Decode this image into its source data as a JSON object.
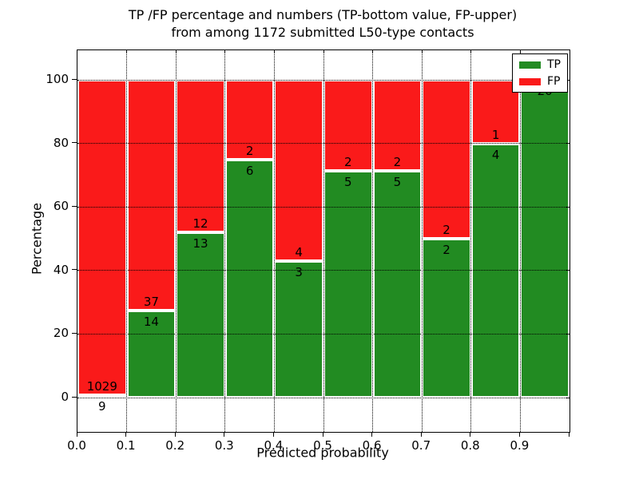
{
  "title": {
    "line1": "TP /FP percentage and numbers (TP-bottom value, FP-upper)",
    "line2": "from among 1172 submitted L50-type contacts"
  },
  "axes": {
    "ylabel": "Percentage",
    "xlabel": "Predicted probability",
    "yticks": [
      "0",
      "20",
      "40",
      "60",
      "80",
      "100"
    ],
    "ytick_values": [
      0,
      20,
      40,
      60,
      80,
      100
    ],
    "xticks": [
      "0.0",
      "0.1",
      "0.2",
      "0.3",
      "0.4",
      "0.5",
      "0.6",
      "0.7",
      "0.8",
      "0.9"
    ],
    "xtick_values": [
      0.0,
      0.1,
      0.2,
      0.3,
      0.4,
      0.5,
      0.6,
      0.7,
      0.8,
      0.9
    ]
  },
  "legend": {
    "items": [
      {
        "label": "TP",
        "color": "#228b22",
        "swatch": "green-rect"
      },
      {
        "label": "FP",
        "color": "#fa1a1a",
        "swatch": "red-rect"
      }
    ]
  },
  "chart_data": {
    "type": "bar",
    "stacked": true,
    "normalized_to_percent": true,
    "title": "TP /FP percentage and numbers (TP-bottom value, FP-upper) from among 1172 submitted L50-type contacts",
    "xlabel": "Predicted probability",
    "ylabel": "Percentage",
    "total_contacts": 1172,
    "bin_edges": [
      0.0,
      0.1,
      0.2,
      0.3,
      0.4,
      0.5,
      0.6,
      0.7,
      0.8,
      0.9,
      1.0
    ],
    "categories": [
      "0.0-0.1",
      "0.1-0.2",
      "0.2-0.3",
      "0.3-0.4",
      "0.4-0.5",
      "0.5-0.6",
      "0.6-0.7",
      "0.7-0.8",
      "0.8-0.9",
      "0.9-1.0"
    ],
    "series": [
      {
        "name": "TP",
        "color": "#228b22",
        "counts": [
          9,
          14,
          13,
          6,
          3,
          5,
          5,
          2,
          4,
          20
        ]
      },
      {
        "name": "FP",
        "color": "#fa1a1a",
        "counts": [
          1029,
          37,
          12,
          2,
          4,
          2,
          2,
          2,
          1,
          0
        ]
      }
    ],
    "tp_percent": [
      0.9,
      27.5,
      52.0,
      75.0,
      42.9,
      71.4,
      71.4,
      50.0,
      80.0,
      100.0
    ],
    "ylim": [
      -10.8,
      109.3
    ],
    "xlim": [
      0.0,
      1.0
    ],
    "grid": "dotted-black-both-axes",
    "legend_position": "upper right"
  }
}
